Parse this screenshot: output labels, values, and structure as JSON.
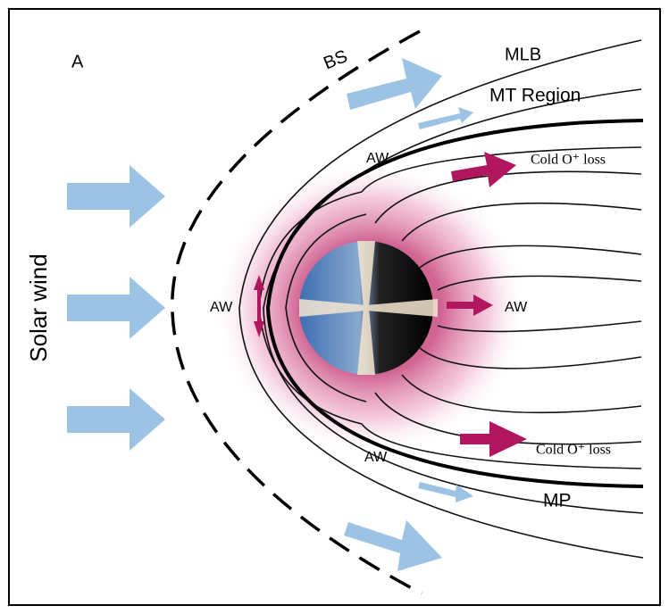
{
  "panel_label": "A",
  "labels": {
    "bow_shock": "BS",
    "mlb": "MLB",
    "mt_region": "MT Region",
    "solar_wind": "Solar wind",
    "magnetopause": "MP",
    "aw_top": "AW",
    "aw_left": "AW",
    "aw_right": "AW",
    "aw_bottom": "AW",
    "cold_loss_top": "Cold O⁺ loss",
    "cold_loss_bottom": "Cold O⁺ loss"
  }
}
